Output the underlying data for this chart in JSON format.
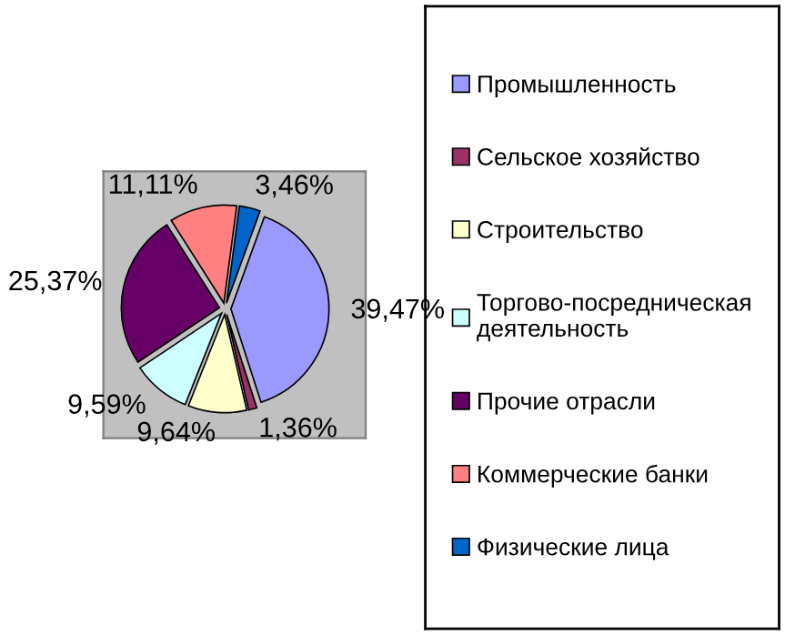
{
  "chart_data": {
    "type": "pie",
    "categories": [
      "Промышленность",
      "Сельское хозяйство",
      "Строительство",
      "Торгово-посредническая деятельность",
      "Прочие отрасли",
      "Коммерческие банки",
      "Физические лица"
    ],
    "values": [
      39.47,
      1.36,
      9.64,
      9.59,
      25.37,
      11.11,
      3.46
    ],
    "colors": [
      "#9999ff",
      "#993366",
      "#ffffcc",
      "#ccffff",
      "#660066",
      "#ff8080",
      "#0066cc"
    ],
    "value_labels": [
      "39,47%",
      "1,36%",
      "9,64%",
      "9,59%",
      "25,37%",
      "11,11%",
      "3,46%"
    ],
    "legend": "right"
  }
}
